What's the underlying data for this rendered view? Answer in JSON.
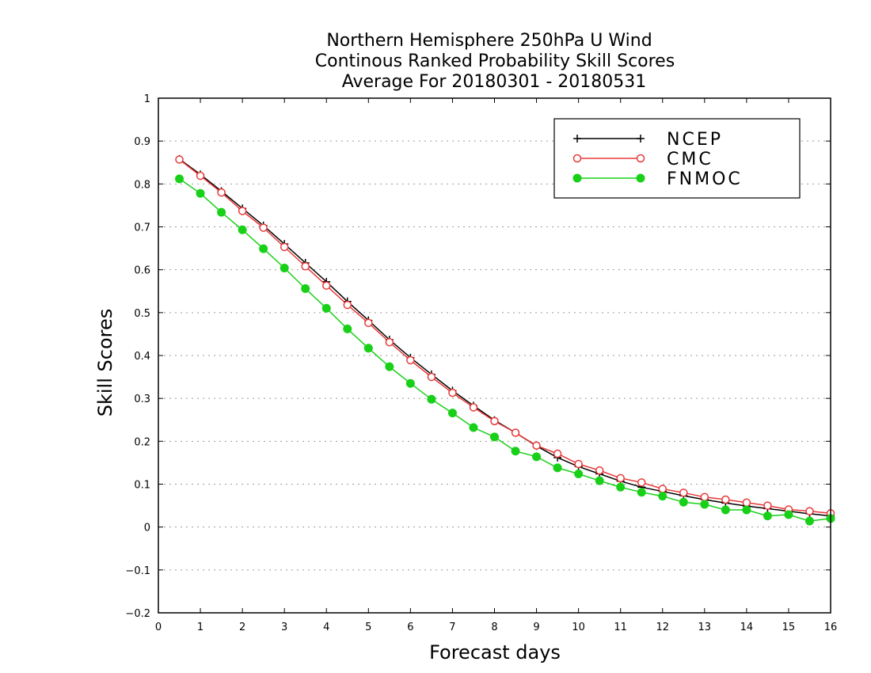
{
  "chart_data": {
    "type": "line",
    "title_lines": [
      "Northern Hemisphere 250hPa U Wind",
      "Continous Ranked Probability Skill Scores",
      "Average For 20180301 - 20180531"
    ],
    "xlabel": "Forecast days",
    "ylabel": "Skill Scores",
    "xlim": [
      0,
      16
    ],
    "ylim": [
      -0.2,
      1
    ],
    "x_ticks": [
      0,
      1,
      2,
      3,
      4,
      5,
      6,
      7,
      8,
      9,
      10,
      11,
      12,
      13,
      14,
      15,
      16
    ],
    "y_ticks": [
      -0.2,
      -0.1,
      0,
      0.1,
      0.2,
      0.3,
      0.4,
      0.5,
      0.6,
      0.7,
      0.8,
      0.9,
      1
    ],
    "y_tick_labels": [
      "−0.2",
      "−0.1",
      "0",
      "0.1",
      "0.2",
      "0.3",
      "0.4",
      "0.5",
      "0.6",
      "0.7",
      "0.8",
      "0.9",
      "1"
    ],
    "grid": "horizontal-dotted",
    "legend_position": "top-right",
    "x": [
      0.5,
      1,
      1.5,
      2,
      2.5,
      3,
      3.5,
      4,
      4.5,
      5,
      5.5,
      6,
      6.5,
      7,
      7.5,
      8,
      8.5,
      9,
      9.5,
      10,
      10.5,
      11,
      11.5,
      12,
      12.5,
      13,
      13.5,
      14,
      14.5,
      15,
      15.5,
      16
    ],
    "series": [
      {
        "name": "NCEP",
        "color": "#000000",
        "marker": "plus",
        "values": [
          0.858,
          0.822,
          0.783,
          0.743,
          0.703,
          0.66,
          0.616,
          0.572,
          0.526,
          0.482,
          0.437,
          0.395,
          0.356,
          0.318,
          0.283,
          0.249,
          0.22,
          0.189,
          0.162,
          0.141,
          0.124,
          0.107,
          0.093,
          0.083,
          0.073,
          0.064,
          0.056,
          0.049,
          0.043,
          0.037,
          0.031,
          0.026
        ]
      },
      {
        "name": "CMC",
        "color": "#e83838",
        "marker": "open-circle",
        "values": [
          0.857,
          0.819,
          0.78,
          0.737,
          0.698,
          0.653,
          0.608,
          0.563,
          0.518,
          0.476,
          0.431,
          0.389,
          0.35,
          0.313,
          0.279,
          0.247,
          0.22,
          0.19,
          0.171,
          0.147,
          0.132,
          0.114,
          0.104,
          0.089,
          0.08,
          0.07,
          0.064,
          0.057,
          0.05,
          0.041,
          0.037,
          0.032
        ]
      },
      {
        "name": "FNMOC",
        "color": "#18d018",
        "marker": "filled-circle",
        "values": [
          0.812,
          0.778,
          0.734,
          0.693,
          0.649,
          0.604,
          0.556,
          0.51,
          0.462,
          0.417,
          0.374,
          0.335,
          0.298,
          0.266,
          0.232,
          0.21,
          0.177,
          0.164,
          0.138,
          0.124,
          0.108,
          0.093,
          0.081,
          0.072,
          0.058,
          0.053,
          0.04,
          0.04,
          0.026,
          0.029,
          0.014,
          0.02
        ]
      }
    ]
  }
}
